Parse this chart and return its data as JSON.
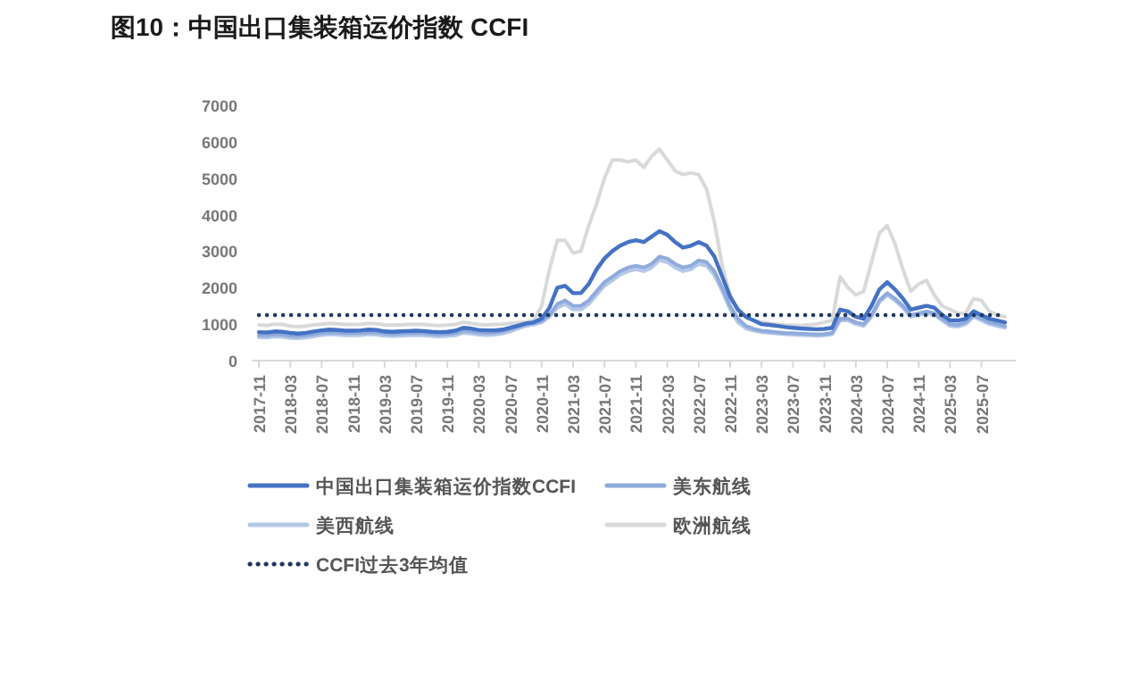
{
  "chart_data": {
    "type": "line",
    "title": "图10：中国出口集装箱运价指数 CCFI",
    "categories": [
      "2017-11",
      null,
      null,
      null,
      "2018-03",
      null,
      null,
      null,
      "2018-07",
      null,
      null,
      null,
      "2018-11",
      null,
      null,
      null,
      "2019-03",
      null,
      null,
      null,
      "2019-07",
      null,
      null,
      null,
      "2019-11",
      null,
      null,
      null,
      "2020-03",
      null,
      null,
      null,
      "2020-07",
      null,
      null,
      null,
      "2020-11",
      null,
      null,
      null,
      "2021-03",
      null,
      null,
      null,
      "2021-07",
      null,
      null,
      null,
      "2021-11",
      null,
      null,
      null,
      "2022-03",
      null,
      null,
      null,
      "2022-07",
      null,
      null,
      null,
      "2022-11",
      null,
      null,
      null,
      "2023-03",
      null,
      null,
      null,
      "2023-07",
      null,
      null,
      null,
      "2023-11",
      null,
      null,
      null,
      "2024-03",
      null,
      null,
      null,
      "2024-07",
      null,
      null,
      null,
      "2024-11",
      null,
      null,
      null,
      "2025-03",
      null,
      null,
      null,
      "2025-07",
      null,
      null,
      null
    ],
    "ylim": [
      0,
      7000
    ],
    "yticks": [
      0,
      1000,
      2000,
      3000,
      4000,
      5000,
      6000,
      7000
    ],
    "legend": "bottom",
    "series": [
      {
        "name": "中国出口集装箱运价指数CCFI",
        "color": "#4472c4",
        "values": [
          780,
          770,
          800,
          790,
          760,
          740,
          760,
          800,
          830,
          850,
          840,
          820,
          820,
          830,
          850,
          840,
          800,
          790,
          800,
          810,
          820,
          810,
          790,
          780,
          790,
          820,
          900,
          880,
          840,
          830,
          830,
          850,
          900,
          960,
          1020,
          1050,
          1150,
          1450,
          2000,
          2050,
          1850,
          1850,
          2100,
          2500,
          2800,
          3000,
          3150,
          3250,
          3300,
          3250,
          3400,
          3550,
          3450,
          3250,
          3100,
          3150,
          3250,
          3150,
          2850,
          2300,
          1750,
          1400,
          1200,
          1100,
          1000,
          980,
          950,
          920,
          900,
          880,
          870,
          860,
          870,
          900,
          1400,
          1350,
          1200,
          1150,
          1500,
          1950,
          2150,
          1950,
          1700,
          1400,
          1450,
          1500,
          1450,
          1250,
          1100,
          1100,
          1150,
          1350,
          1250,
          1150,
          1100,
          1050
        ]
      },
      {
        "name": "美东航线",
        "color": "#8faadc",
        "values": [
          700,
          690,
          720,
          710,
          680,
          670,
          690,
          720,
          760,
          780,
          770,
          750,
          750,
          760,
          780,
          770,
          740,
          730,
          740,
          750,
          760,
          750,
          730,
          720,
          730,
          750,
          820,
          800,
          770,
          760,
          770,
          800,
          860,
          930,
          990,
          1020,
          1080,
          1250,
          1550,
          1650,
          1500,
          1500,
          1650,
          1900,
          2150,
          2300,
          2450,
          2550,
          2600,
          2550,
          2650,
          2850,
          2800,
          2650,
          2550,
          2600,
          2750,
          2700,
          2450,
          2000,
          1500,
          1150,
          950,
          870,
          820,
          800,
          780,
          760,
          750,
          740,
          730,
          720,
          730,
          760,
          1150,
          1150,
          1050,
          1000,
          1250,
          1650,
          1850,
          1700,
          1500,
          1250,
          1300,
          1350,
          1300,
          1150,
          1000,
          980,
          1050,
          1250,
          1150,
          1050,
          1000,
          950
        ]
      },
      {
        "name": "美西航线",
        "color": "#b4c7e7",
        "values": [
          640,
          630,
          660,
          650,
          620,
          610,
          630,
          660,
          700,
          720,
          710,
          690,
          690,
          700,
          720,
          710,
          680,
          670,
          680,
          690,
          700,
          690,
          670,
          660,
          670,
          690,
          760,
          740,
          710,
          700,
          710,
          740,
          800,
          880,
          950,
          990,
          1050,
          1200,
          1450,
          1550,
          1400,
          1400,
          1550,
          1800,
          2050,
          2200,
          2350,
          2450,
          2500,
          2450,
          2550,
          2750,
          2700,
          2550,
          2450,
          2500,
          2650,
          2600,
          2350,
          1900,
          1400,
          1050,
          880,
          820,
          780,
          760,
          740,
          720,
          710,
          700,
          690,
          680,
          690,
          720,
          1100,
          1100,
          1000,
          950,
          1200,
          1600,
          1800,
          1650,
          1450,
          1200,
          1250,
          1300,
          1250,
          1100,
          950,
          930,
          1000,
          1200,
          1100,
          1000,
          950,
          900
        ]
      },
      {
        "name": "欧洲航线",
        "color": "#d9d9d9",
        "values": [
          980,
          960,
          1000,
          990,
          950,
          930,
          950,
          980,
          1000,
          1020,
          1010,
          990,
          990,
          1000,
          1020,
          1010,
          980,
          970,
          980,
          990,
          1000,
          990,
          970,
          960,
          970,
          990,
          1050,
          1020,
          990,
          980,
          990,
          1000,
          1020,
          1040,
          1060,
          1100,
          1500,
          2500,
          3300,
          3300,
          2950,
          3000,
          3700,
          4300,
          5000,
          5500,
          5500,
          5450,
          5500,
          5300,
          5600,
          5800,
          5500,
          5200,
          5100,
          5150,
          5100,
          4700,
          3800,
          2600,
          1800,
          1350,
          1200,
          1100,
          1050,
          1020,
          1000,
          980,
          970,
          960,
          980,
          1000,
          1050,
          1100,
          2300,
          2000,
          1800,
          1900,
          2700,
          3500,
          3700,
          3200,
          2500,
          1900,
          2100,
          2200,
          1800,
          1500,
          1400,
          1300,
          1300,
          1700,
          1650,
          1350,
          1250,
          1200
        ]
      }
    ],
    "ref_lines": [
      {
        "axis": "y",
        "value": 1250,
        "label": "CCFI过去3年均值",
        "color": "#203864",
        "line_style": "dotted"
      }
    ]
  }
}
